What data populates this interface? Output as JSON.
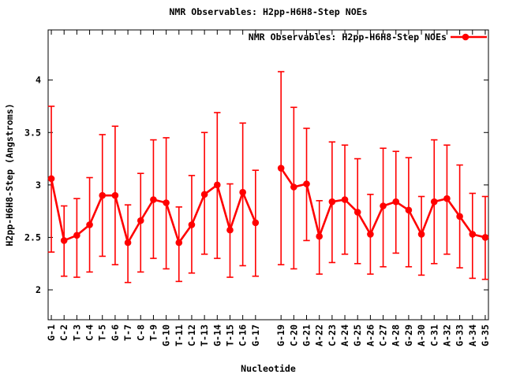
{
  "page": {
    "background": "#ffffff",
    "foreground": "#000000"
  },
  "chart_data": {
    "type": "line",
    "title": "NMR Observables: H2pp-H6H8-Step NOEs",
    "xlabel": "Nucleotide",
    "ylabel": "H2pp-H6H8-Step (Angstroms)",
    "legend": [
      {
        "label": "NMR Observables: H2pp-H6H8-Step NOEs",
        "color": "#ff0000",
        "marker": "filled-circle",
        "line": "solid"
      }
    ],
    "legend_position": "top-right-inside",
    "grid": false,
    "series_color": "#ff0000",
    "error_bars": true,
    "yticks": [
      2,
      2.5,
      3,
      3.5,
      4
    ],
    "ylim": [
      1.715,
      4.478
    ],
    "xlim": [
      0.75,
      35.25
    ],
    "missing_positions": [
      18
    ],
    "points": [
      {
        "pos": 1,
        "label": "G-1",
        "value": 3.06,
        "lo": 2.36,
        "hi": 3.75
      },
      {
        "pos": 2,
        "label": "C-2",
        "value": 2.47,
        "lo": 2.13,
        "hi": 2.8
      },
      {
        "pos": 3,
        "label": "T-3",
        "value": 2.52,
        "lo": 2.12,
        "hi": 2.87
      },
      {
        "pos": 4,
        "label": "C-4",
        "value": 2.62,
        "lo": 2.17,
        "hi": 3.07
      },
      {
        "pos": 5,
        "label": "T-5",
        "value": 2.9,
        "lo": 2.32,
        "hi": 3.48
      },
      {
        "pos": 6,
        "label": "G-6",
        "value": 2.9,
        "lo": 2.24,
        "hi": 3.56
      },
      {
        "pos": 7,
        "label": "T-7",
        "value": 2.45,
        "lo": 2.07,
        "hi": 2.81
      },
      {
        "pos": 8,
        "label": "C-8",
        "value": 2.66,
        "lo": 2.17,
        "hi": 3.11
      },
      {
        "pos": 9,
        "label": "T-9",
        "value": 2.86,
        "lo": 2.3,
        "hi": 3.43
      },
      {
        "pos": 10,
        "label": "G-10",
        "value": 2.83,
        "lo": 2.2,
        "hi": 3.45
      },
      {
        "pos": 11,
        "label": "T-11",
        "value": 2.45,
        "lo": 2.08,
        "hi": 2.79
      },
      {
        "pos": 12,
        "label": "C-12",
        "value": 2.62,
        "lo": 2.16,
        "hi": 3.09
      },
      {
        "pos": 13,
        "label": "T-13",
        "value": 2.91,
        "lo": 2.34,
        "hi": 3.5
      },
      {
        "pos": 14,
        "label": "G-14",
        "value": 3.0,
        "lo": 2.3,
        "hi": 3.69
      },
      {
        "pos": 15,
        "label": "T-15",
        "value": 2.57,
        "lo": 2.12,
        "hi": 3.01
      },
      {
        "pos": 16,
        "label": "C-16",
        "value": 2.93,
        "lo": 2.23,
        "hi": 3.59
      },
      {
        "pos": 17,
        "label": "G-17",
        "value": 2.64,
        "lo": 2.13,
        "hi": 3.14
      },
      {
        "pos": 19,
        "label": "G-19",
        "value": 3.16,
        "lo": 2.24,
        "hi": 4.08
      },
      {
        "pos": 20,
        "label": "C-20",
        "value": 2.98,
        "lo": 2.2,
        "hi": 3.74
      },
      {
        "pos": 21,
        "label": "G-21",
        "value": 3.01,
        "lo": 2.47,
        "hi": 3.54
      },
      {
        "pos": 22,
        "label": "A-22",
        "value": 2.51,
        "lo": 2.15,
        "hi": 2.85
      },
      {
        "pos": 23,
        "label": "C-23",
        "value": 2.84,
        "lo": 2.26,
        "hi": 3.41
      },
      {
        "pos": 24,
        "label": "A-24",
        "value": 2.86,
        "lo": 2.34,
        "hi": 3.38
      },
      {
        "pos": 25,
        "label": "G-25",
        "value": 2.74,
        "lo": 2.25,
        "hi": 3.25
      },
      {
        "pos": 26,
        "label": "A-26",
        "value": 2.53,
        "lo": 2.15,
        "hi": 2.91
      },
      {
        "pos": 27,
        "label": "C-27",
        "value": 2.8,
        "lo": 2.22,
        "hi": 3.35
      },
      {
        "pos": 28,
        "label": "A-28",
        "value": 2.84,
        "lo": 2.35,
        "hi": 3.32
      },
      {
        "pos": 29,
        "label": "G-29",
        "value": 2.76,
        "lo": 2.22,
        "hi": 3.26
      },
      {
        "pos": 30,
        "label": "A-30",
        "value": 2.53,
        "lo": 2.14,
        "hi": 2.89
      },
      {
        "pos": 31,
        "label": "C-31",
        "value": 2.84,
        "lo": 2.25,
        "hi": 3.43
      },
      {
        "pos": 32,
        "label": "A-32",
        "value": 2.87,
        "lo": 2.34,
        "hi": 3.38
      },
      {
        "pos": 33,
        "label": "G-33",
        "value": 2.7,
        "lo": 2.21,
        "hi": 3.19
      },
      {
        "pos": 34,
        "label": "A-34",
        "value": 2.53,
        "lo": 2.11,
        "hi": 2.92
      },
      {
        "pos": 35,
        "label": "G-35",
        "value": 2.5,
        "lo": 2.1,
        "hi": 2.89
      }
    ]
  }
}
